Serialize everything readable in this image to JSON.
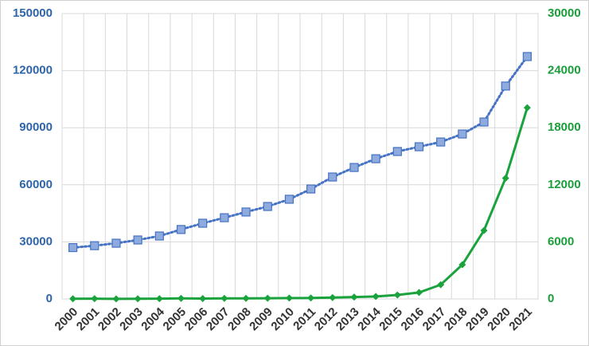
{
  "chart_data": {
    "type": "line",
    "categories": [
      "2000",
      "2001",
      "2002",
      "2003",
      "2004",
      "2005",
      "2006",
      "2007",
      "2008",
      "2009",
      "2010",
      "2011",
      "2012",
      "2013",
      "2014",
      "2015",
      "2016",
      "2017",
      "2018",
      "2019",
      "2020",
      "2021"
    ],
    "series": [
      {
        "color": "#4472c4",
        "line_style": "dotted",
        "marker": "square",
        "marker_fill": "#8faadc",
        "values": [
          27000,
          28000,
          29300,
          31000,
          33100,
          36500,
          39800,
          42700,
          45700,
          48600,
          52400,
          57800,
          64100,
          69100,
          73700,
          77500,
          80000,
          82500,
          86700,
          93000,
          111900,
          127400
        ]
      },
      {
        "color": "#1aa33c",
        "line_style": "solid",
        "marker": "diamond",
        "axis": "y2",
        "values": [
          20,
          30,
          10,
          20,
          30,
          60,
          40,
          60,
          60,
          70,
          90,
          100,
          150,
          200,
          260,
          420,
          680,
          1500,
          3600,
          7200,
          12700,
          20100
        ]
      }
    ],
    "ylim": [
      0,
      150000
    ],
    "yticks": [
      0,
      30000,
      60000,
      90000,
      120000,
      150000
    ],
    "ytick_color": "#2e64a8",
    "y2lim": [
      0,
      30000
    ],
    "y2ticks": [
      0,
      6000,
      12000,
      18000,
      24000,
      30000
    ],
    "y2tick_color": "#1a9e3a",
    "grid": true
  }
}
